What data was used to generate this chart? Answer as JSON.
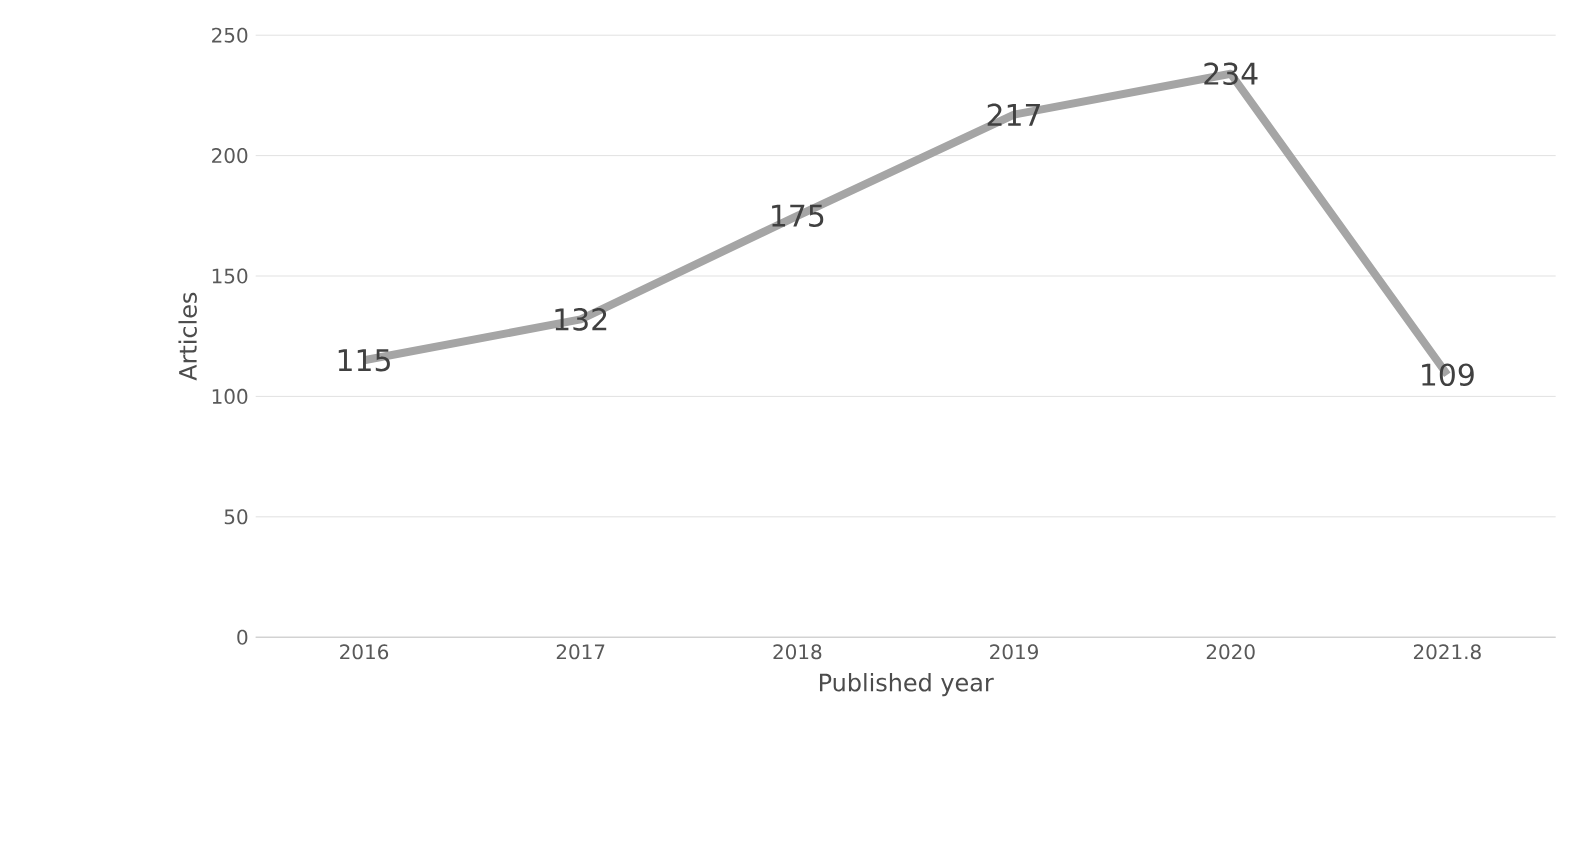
{
  "chart_data": {
    "type": "line",
    "xlabel": "Published year",
    "ylabel": "Articles",
    "categories": [
      "2016",
      "2017",
      "2018",
      "2019",
      "2020",
      "2021.8"
    ],
    "values": [
      115,
      132,
      175,
      217,
      234,
      109
    ],
    "color": "#a5a5a5",
    "ylim": [
      0,
      250
    ],
    "yticks": [
      0,
      50,
      100,
      150,
      200,
      250
    ],
    "grid": "y",
    "data_labels": true,
    "marker": "none",
    "line_style": "solid"
  }
}
